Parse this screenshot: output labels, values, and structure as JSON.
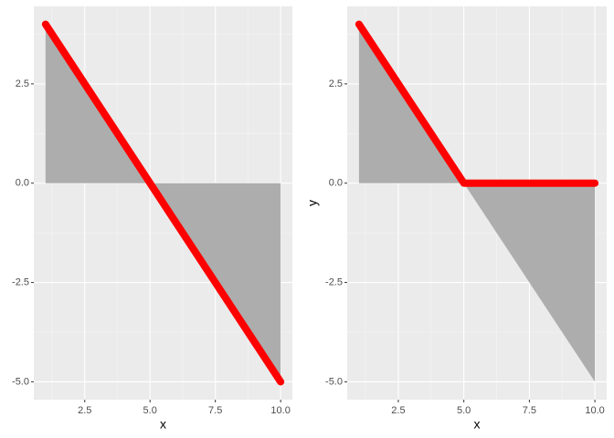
{
  "chart_data": [
    {
      "type": "area",
      "x": [
        1,
        2,
        3,
        4,
        5,
        6,
        7,
        8,
        9,
        10
      ],
      "area": {
        "values": [
          4,
          3,
          2,
          1,
          0,
          -1,
          -2,
          -3,
          -4,
          -5
        ],
        "color": "#adadad"
      },
      "line": {
        "values": [
          4,
          3,
          2,
          1,
          0,
          -1,
          -2,
          -3,
          -4,
          -5
        ],
        "color": "#ff0000"
      },
      "xlim": [
        0.55,
        10.45
      ],
      "ylim": [
        -5.45,
        4.45
      ],
      "xticks": [
        2.5,
        {
          "value": 5,
          "label": "5.0"
        },
        7.5,
        {
          "value": 10,
          "label": "10.0"
        }
      ],
      "yticks": [
        {
          "value": -5,
          "label": "-5.0"
        },
        -2.5,
        {
          "value": 0,
          "label": "0.0"
        },
        2.5
      ],
      "xminor": [
        1.25,
        3.75,
        6.25,
        8.75
      ],
      "yminor": [
        -3.75,
        -1.25,
        1.25,
        3.75
      ],
      "grid": true,
      "xlabel": "x"
    },
    {
      "type": "area",
      "x": [
        1,
        2,
        3,
        4,
        5,
        6,
        7,
        8,
        9,
        10
      ],
      "area": {
        "values": [
          4,
          3,
          2,
          1,
          0,
          -1,
          -2,
          -3,
          -4,
          -5
        ],
        "color": "#adadad"
      },
      "line": {
        "values": [
          4,
          3,
          2,
          1,
          0,
          0,
          0,
          0,
          0,
          0
        ],
        "color": "#ff0000"
      },
      "xlim": [
        0.55,
        10.45
      ],
      "ylim": [
        -5.45,
        4.45
      ],
      "xticks": [
        2.5,
        {
          "value": 5,
          "label": "5.0"
        },
        7.5,
        {
          "value": 10,
          "label": "10.0"
        }
      ],
      "yticks": [
        {
          "value": -5,
          "label": "-5.0"
        },
        -2.5,
        {
          "value": 0,
          "label": "0.0"
        },
        2.5
      ],
      "xminor": [
        1.25,
        3.75,
        6.25,
        8.75
      ],
      "yminor": [
        -3.75,
        -1.25,
        1.25,
        3.75
      ],
      "grid": true,
      "xlabel": "x",
      "ylabel": "y"
    }
  ]
}
